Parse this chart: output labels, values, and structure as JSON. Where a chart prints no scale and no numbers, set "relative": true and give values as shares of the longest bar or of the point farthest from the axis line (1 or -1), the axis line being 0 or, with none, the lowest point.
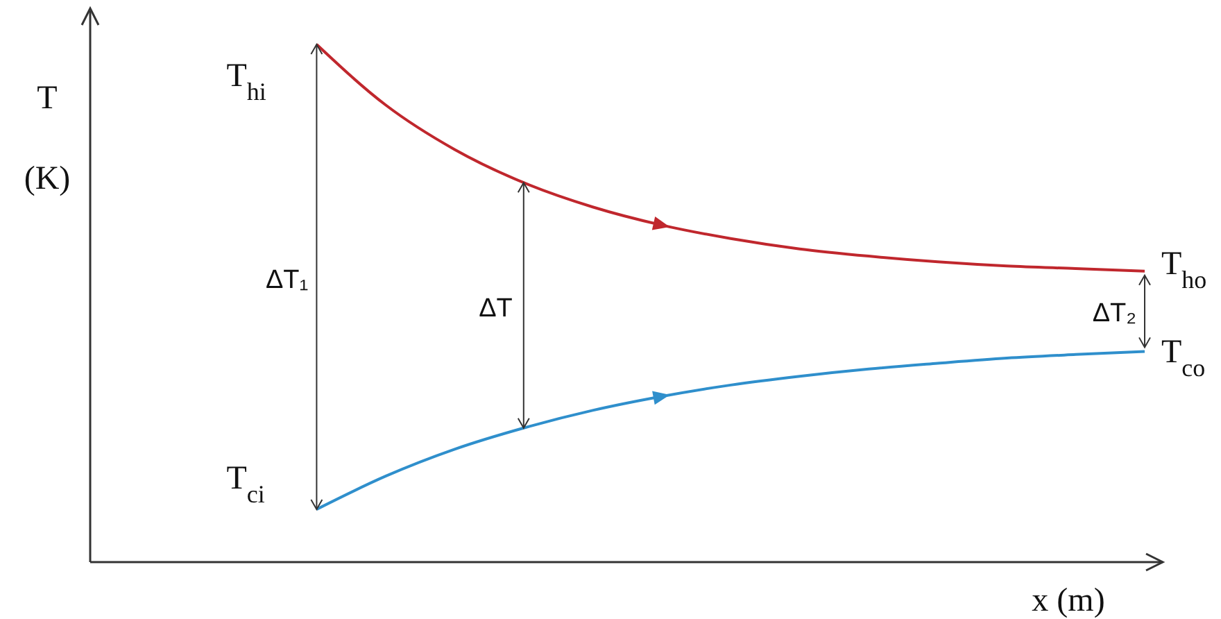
{
  "chart_data": {
    "type": "line",
    "relative": true,
    "xlabel": "x (m)",
    "ylabel": "T (K)",
    "categories": [
      null,
      null,
      null,
      null,
      null,
      null,
      null,
      null,
      null,
      null,
      null,
      null,
      null,
      null,
      null,
      null
    ],
    "series": [
      {
        "color": "#c0272d",
        "values": [
          null,
          null,
          null,
          1.0,
          0.883,
          0.797,
          0.733,
          0.686,
          0.651,
          0.625,
          0.605,
          0.591,
          0.58,
          0.572,
          0.567,
          0.562
        ]
      },
      {
        "color": "#2f8fcc",
        "values": [
          null,
          null,
          null,
          0.102,
          0.166,
          0.218,
          0.259,
          0.293,
          0.32,
          0.342,
          0.359,
          0.373,
          0.384,
          0.394,
          0.401,
          0.407
        ]
      }
    ],
    "annotations": [
      "T$_{hi}$",
      "T$_{ci}$",
      "T$_{ho}$",
      "T$_{co}$",
      "ΔT₁",
      "ΔT",
      "ΔT₂"
    ],
    "marker": "none",
    "line_style": "solid"
  }
}
